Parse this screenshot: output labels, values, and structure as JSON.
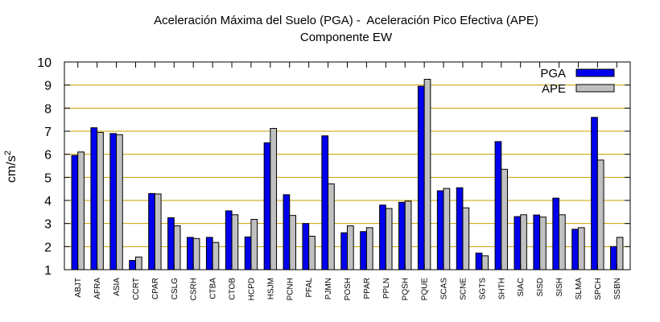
{
  "chart_data": {
    "type": "bar",
    "title": "Aceleración Máxima del Suelo (PGA) -  Aceleración Pico Efectiva (APE)",
    "subtitle": "Componente EW",
    "xlabel": "",
    "ylabel": "cm/s",
    "ylabel_exponent": "2",
    "ylim": [
      1,
      10
    ],
    "yticks": [
      "1",
      "2",
      "3",
      "4",
      "5",
      "6",
      "7",
      "8",
      "9",
      "10"
    ],
    "grid": true,
    "legend_position": "top-right",
    "categories": [
      "ABJT",
      "AFRA",
      "ASIA",
      "CCRT",
      "CPAR",
      "CSLG",
      "CSRH",
      "CTBA",
      "CTOB",
      "HCPD",
      "HSJM",
      "PCNH",
      "PFAL",
      "PJMN",
      "POSH",
      "PPAR",
      "PPLN",
      "PQSH",
      "PQUE",
      "SCAS",
      "SCNE",
      "SGTS",
      "SHTH",
      "SIAC",
      "SISD",
      "SISH",
      "SLMA",
      "SPCH",
      "SSBN"
    ],
    "series": [
      {
        "name": "PGA",
        "color": "#0000ee",
        "values": [
          5.95,
          7.15,
          6.9,
          1.4,
          4.3,
          3.25,
          2.4,
          2.4,
          3.55,
          2.42,
          6.5,
          4.25,
          3.0,
          6.8,
          2.6,
          2.65,
          3.8,
          3.92,
          8.95,
          4.42,
          4.55,
          1.72,
          6.55,
          3.3,
          3.37,
          4.1,
          2.75,
          7.6,
          2.0
        ]
      },
      {
        "name": "APE",
        "color": "#c0c0c0",
        "values": [
          6.1,
          6.95,
          6.85,
          1.55,
          4.28,
          2.9,
          2.35,
          2.18,
          3.38,
          3.18,
          7.12,
          3.35,
          2.45,
          4.72,
          2.9,
          2.82,
          3.65,
          3.97,
          9.25,
          4.52,
          3.68,
          1.6,
          5.35,
          3.38,
          3.28,
          3.38,
          2.82,
          5.75,
          2.4
        ]
      }
    ]
  }
}
